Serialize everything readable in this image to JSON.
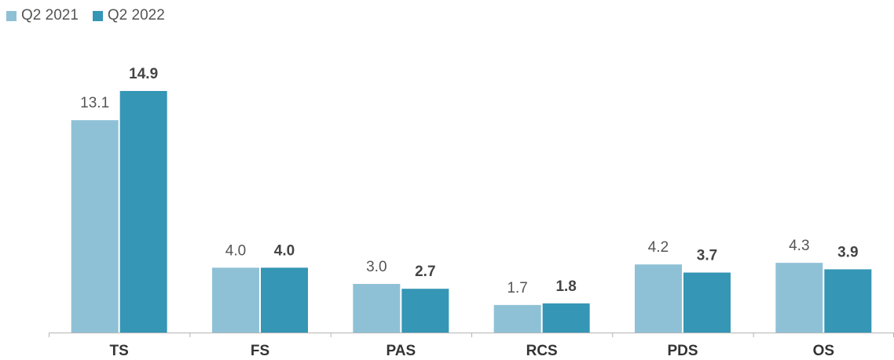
{
  "chart_data": {
    "type": "bar",
    "categories": [
      "TS",
      "FS",
      "PAS",
      "RCS",
      "PDS",
      "OS"
    ],
    "series": [
      {
        "name": "Q2 2021",
        "values": [
          13.1,
          4.0,
          3.0,
          1.7,
          4.2,
          4.3
        ],
        "labels": [
          "13.1",
          "4.0",
          "3.0",
          "1.7",
          "4.2",
          "4.3"
        ],
        "color": "#8fc1d6"
      },
      {
        "name": "Q2 2022",
        "values": [
          14.9,
          4.0,
          2.7,
          1.8,
          3.7,
          3.9
        ],
        "labels": [
          "14.9",
          "4.0",
          "2.7",
          "1.8",
          "3.7",
          "3.9"
        ],
        "color": "#3596b5"
      }
    ],
    "ylim": [
      0,
      14.9
    ],
    "grid": false,
    "legend": "top-left"
  }
}
